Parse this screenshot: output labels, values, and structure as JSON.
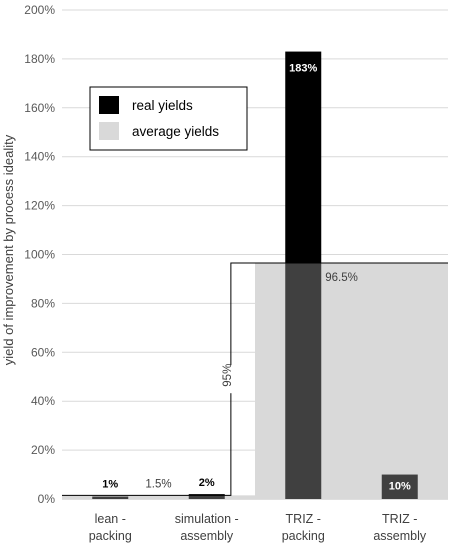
{
  "chart_data": {
    "type": "bar",
    "categories": [
      "lean - packing",
      "simulation - assembly",
      "TRIZ - packing",
      "TRIZ - assembly"
    ],
    "series": [
      {
        "name": "real yields",
        "color": "#000000",
        "values": [
          1,
          2,
          183,
          10
        ]
      },
      {
        "name": "average yields",
        "color": "#d9d9d9",
        "values": [
          1.5,
          1.5,
          96.5,
          96.5
        ]
      }
    ],
    "overlap_color": "#404040",
    "value_labels": [
      "1%",
      "2%",
      "183%",
      "10%"
    ],
    "average_labels": [
      "1.5%",
      "96.5%"
    ],
    "gap_label": "95%",
    "ylabel": "yield of improvement by process ideality",
    "ylim": [
      0,
      200
    ],
    "ytick_step": 20,
    "tick_suffix": "%",
    "grid": true,
    "legend_position": "top-left"
  }
}
